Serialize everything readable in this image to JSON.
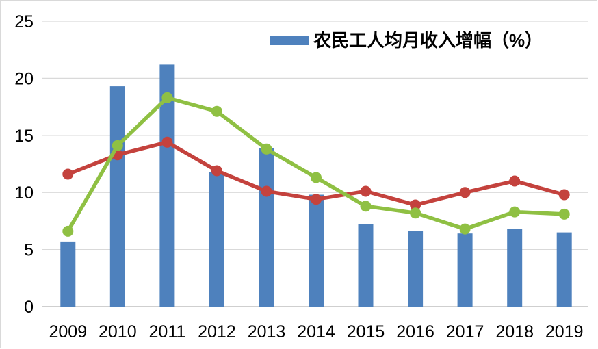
{
  "chart_data": {
    "type": "combo",
    "title": "",
    "categories": [
      "2009",
      "2010",
      "2011",
      "2012",
      "2013",
      "2014",
      "2015",
      "2016",
      "2017",
      "2018",
      "2019"
    ],
    "series": [
      {
        "id": "bar-series",
        "type": "bar",
        "legend_label": "农民工人均月收入增幅（%）",
        "color": "#4E81BD",
        "values": [
          5.7,
          19.3,
          21.2,
          11.8,
          13.9,
          9.8,
          7.2,
          6.6,
          6.4,
          6.8,
          6.5
        ]
      },
      {
        "id": "line-red",
        "type": "line",
        "color": "#C4423D",
        "values": [
          11.6,
          13.3,
          14.4,
          11.9,
          10.1,
          9.4,
          10.1,
          8.9,
          10.0,
          11.0,
          9.8
        ]
      },
      {
        "id": "line-green",
        "type": "line",
        "color": "#8FC043",
        "values": [
          6.6,
          14.1,
          18.3,
          17.1,
          13.8,
          11.3,
          8.8,
          8.2,
          6.8,
          8.3,
          8.1
        ]
      }
    ],
    "xlabel": "",
    "ylabel": "",
    "ylim": [
      0,
      25
    ],
    "yticks": [
      0,
      5,
      10,
      15,
      20,
      25
    ],
    "grid": true,
    "gridline_color": "#D9D9D9",
    "axis_line_color": "#BFBFBF",
    "tick_text_color": "#000000",
    "legend": {
      "position": "top",
      "entries": [
        {
          "label": "农民工人均月收入增幅（%）",
          "swatch_color": "#4E81BD"
        }
      ]
    }
  }
}
